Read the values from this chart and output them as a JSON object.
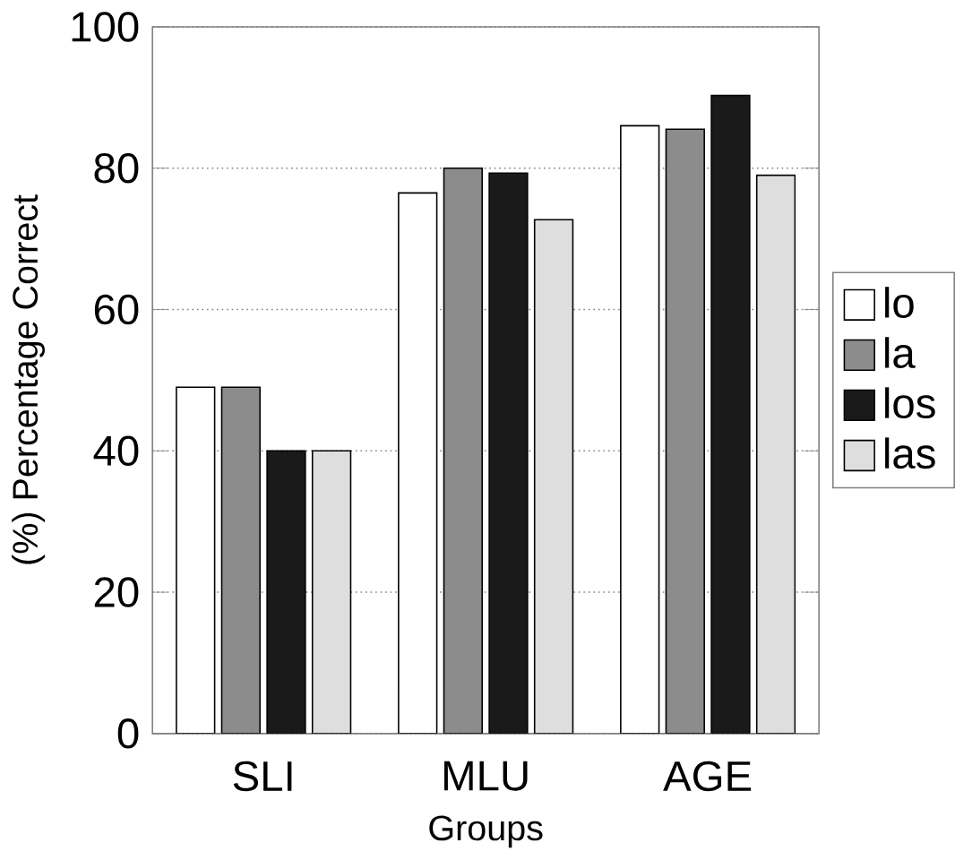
{
  "chart_data": {
    "type": "bar",
    "xlabel": "Groups",
    "ylabel": "(%) Percentage Correct",
    "categories": [
      "SLI",
      "MLU",
      "AGE"
    ],
    "series": [
      {
        "name": "lo",
        "color": "#ffffff",
        "values": [
          49,
          76.5,
          86
        ]
      },
      {
        "name": "la",
        "color": "#8c8c8c",
        "values": [
          49,
          80,
          85.5
        ]
      },
      {
        "name": "los",
        "color": "#1a1a1a",
        "values": [
          40,
          79.3,
          90.3
        ]
      },
      {
        "name": "las",
        "color": "#dedede",
        "values": [
          40,
          72.7,
          79
        ]
      }
    ],
    "ylim": [
      0,
      100
    ],
    "yticks": [
      0,
      20,
      40,
      60,
      80,
      100
    ],
    "grid": "y",
    "legend": "right"
  }
}
